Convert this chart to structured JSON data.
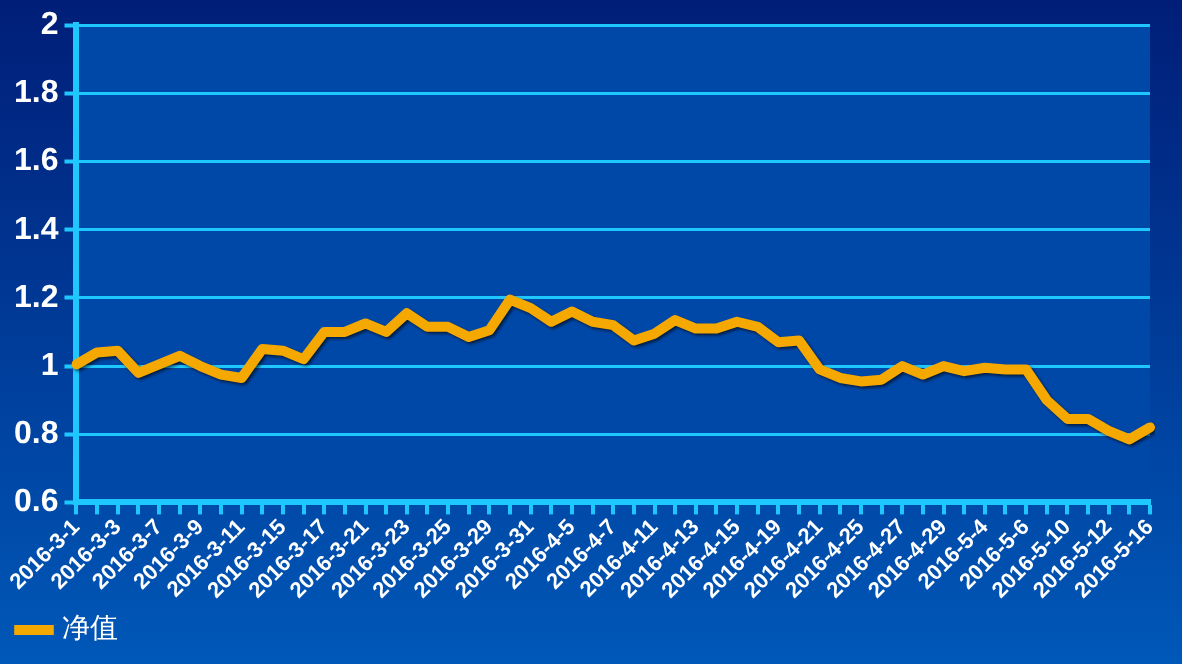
{
  "chart_data": {
    "type": "line",
    "categories": [
      "2016-3-1",
      null,
      "2016-3-3",
      null,
      "2016-3-7",
      null,
      "2016-3-9",
      null,
      "2016-3-11",
      null,
      "2016-3-15",
      null,
      "2016-3-17",
      null,
      "2016-3-21",
      null,
      "2016-3-23",
      null,
      "2016-3-25",
      null,
      "2016-3-29",
      null,
      "2016-3-31",
      null,
      "2016-4-5",
      null,
      "2016-4-7",
      null,
      "2016-4-11",
      null,
      "2016-4-13",
      null,
      "2016-4-15",
      null,
      "2016-4-19",
      null,
      "2016-4-21",
      null,
      "2016-4-25",
      null,
      "2016-4-27",
      null,
      "2016-4-29",
      null,
      "2016-5-4",
      null,
      "2016-5-6",
      null,
      "2016-5-10",
      null,
      "2016-5-12",
      null,
      "2016-5-16"
    ],
    "series": [
      {
        "name": "净值",
        "color": "#f5a800",
        "values": [
          1.005,
          1.04,
          1.045,
          0.98,
          1.005,
          1.03,
          1.0,
          0.975,
          0.965,
          1.05,
          1.045,
          1.02,
          1.1,
          1.1,
          1.125,
          1.1,
          1.155,
          1.115,
          1.115,
          1.085,
          1.105,
          1.195,
          1.17,
          1.13,
          1.16,
          1.13,
          1.12,
          1.075,
          1.095,
          1.135,
          1.11,
          1.11,
          1.13,
          1.115,
          1.07,
          1.075,
          0.99,
          0.965,
          0.955,
          0.96,
          1.0,
          0.975,
          1.0,
          0.985,
          0.995,
          0.99,
          0.99,
          0.9,
          0.845,
          0.845,
          0.81,
          0.785,
          0.82
        ]
      }
    ],
    "ylim": [
      0.6,
      2
    ],
    "yticks": [
      0.6,
      0.8,
      1,
      1.2,
      1.4,
      1.6,
      1.8,
      2
    ],
    "grid": "y",
    "legend": "bottom left",
    "marker": "none",
    "line_style": "solid"
  }
}
